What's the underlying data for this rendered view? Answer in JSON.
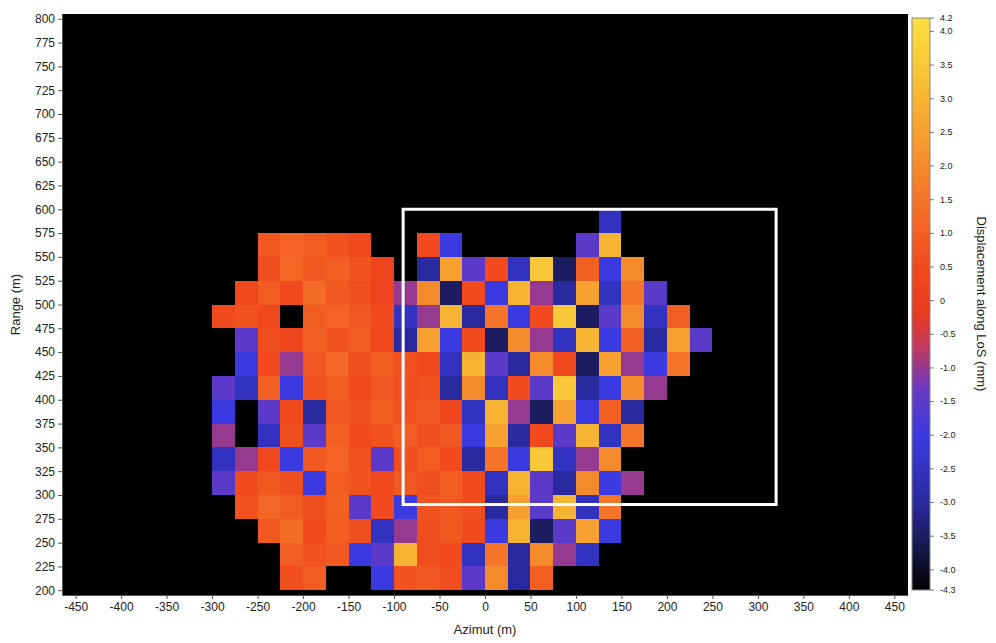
{
  "chart_data": {
    "type": "heatmap",
    "x_label": "Azimut (m)",
    "y_label": "Range (m)",
    "xlim": [
      -465,
      465
    ],
    "ylim": [
      195,
      805
    ],
    "xticks": [
      -450,
      -400,
      -350,
      -300,
      -250,
      -200,
      -150,
      -100,
      -50,
      0,
      50,
      100,
      150,
      200,
      250,
      300,
      350,
      400,
      450
    ],
    "yticks": [
      200,
      225,
      250,
      275,
      300,
      325,
      350,
      375,
      400,
      425,
      450,
      475,
      500,
      525,
      550,
      575,
      600,
      625,
      650,
      675,
      700,
      725,
      750,
      775,
      800
    ],
    "x": [
      -287.5,
      -262.5,
      -237.5,
      -212.5,
      -187.5,
      -162.5,
      -137.5,
      -112.5,
      -87.5,
      -62.5,
      -37.5,
      -12.5,
      12.5,
      37.5,
      62.5,
      87.5,
      112.5,
      137.5,
      162.5,
      187.5,
      212.5,
      237.5,
      262.5,
      287.5,
      312.5
    ],
    "y": [
      212.5,
      237.5,
      262.5,
      287.5,
      312.5,
      337.5,
      362.5,
      387.5,
      412.5,
      437.5,
      462.5,
      487.5,
      512.5,
      537.5,
      562.5,
      587.5
    ],
    "values": [
      [
        null,
        null,
        null,
        0.6,
        0.9,
        null,
        null,
        -2.0,
        0.7,
        0.8,
        0.6,
        -1.5,
        2.0,
        -3.0,
        1.0,
        null,
        null,
        null,
        null,
        null,
        null,
        null,
        null,
        null,
        null
      ],
      [
        null,
        null,
        null,
        1.0,
        0.7,
        0.8,
        -2.0,
        -1.5,
        3.0,
        0.6,
        0.5,
        -2.5,
        1.5,
        -3.0,
        2.0,
        -1.0,
        -2.5,
        null,
        null,
        null,
        null,
        null,
        null,
        null,
        null
      ],
      [
        null,
        null,
        0.8,
        1.3,
        0.5,
        0.9,
        0.6,
        -2.5,
        -1.0,
        0.6,
        0.8,
        0.5,
        -2.0,
        3.0,
        -3.5,
        -1.5,
        2.5,
        -2.0,
        null,
        null,
        null,
        null,
        null,
        null,
        null
      ],
      [
        null,
        0.7,
        1.2,
        0.9,
        0.6,
        1.0,
        -1.5,
        0.5,
        -2.0,
        0.7,
        0.8,
        0.6,
        -3.0,
        2.5,
        -1.5,
        3.0,
        -2.5,
        1.5,
        null,
        null,
        null,
        null,
        null,
        null,
        null
      ],
      [
        -1.5,
        0.5,
        0.8,
        0.6,
        -2.0,
        0.9,
        0.7,
        0.4,
        0.8,
        0.6,
        0.9,
        0.5,
        -2.5,
        3.0,
        -1.5,
        -3.0,
        2.0,
        -2.0,
        -1.0,
        null,
        null,
        null,
        null,
        null,
        null
      ],
      [
        -2.5,
        -1.0,
        0.4,
        -2.0,
        0.8,
        1.1,
        0.7,
        -1.5,
        0.6,
        0.9,
        0.5,
        -3.0,
        1.5,
        -2.0,
        3.5,
        -2.5,
        -1.0,
        2.0,
        null,
        null,
        null,
        null,
        null,
        null,
        null
      ],
      [
        -1.0,
        null,
        -2.5,
        0.6,
        -1.5,
        1.0,
        0.5,
        0.7,
        0.9,
        0.6,
        0.8,
        -2.0,
        2.5,
        -3.0,
        0.5,
        -1.5,
        3.0,
        -2.5,
        1.5,
        null,
        null,
        null,
        null,
        null,
        null
      ],
      [
        -2.0,
        null,
        -1.5,
        0.5,
        -3.0,
        0.8,
        0.6,
        0.9,
        0.7,
        0.8,
        0.3,
        -2.5,
        3.0,
        -1.0,
        -3.5,
        2.5,
        -2.0,
        1.0,
        -3.0,
        null,
        null,
        null,
        null,
        null,
        null
      ],
      [
        -1.5,
        -2.5,
        1.0,
        -2.0,
        0.7,
        0.9,
        0.5,
        0.8,
        0.6,
        0.7,
        -3.0,
        2.0,
        -2.5,
        0.5,
        -1.5,
        3.5,
        -3.0,
        -2.0,
        2.0,
        -1.0,
        null,
        null,
        null,
        null,
        null
      ],
      [
        null,
        -2.0,
        0.5,
        -1.0,
        0.8,
        1.2,
        0.6,
        0.9,
        0.7,
        0.4,
        -2.5,
        3.0,
        -1.5,
        -3.0,
        2.0,
        0.5,
        -3.5,
        2.5,
        -1.0,
        -2.0,
        1.5,
        null,
        null,
        null,
        null
      ],
      [
        null,
        -1.5,
        0.6,
        0.3,
        1.0,
        0.7,
        0.9,
        0.4,
        -3.0,
        2.5,
        -2.0,
        0.5,
        -3.5,
        2.0,
        -1.0,
        -2.5,
        3.0,
        -2.0,
        1.0,
        -3.0,
        2.5,
        -1.5,
        null,
        null,
        null
      ],
      [
        0.5,
        0.7,
        0.4,
        null,
        0.9,
        1.1,
        0.8,
        0.5,
        -2.5,
        -1.0,
        3.0,
        -3.0,
        1.5,
        -2.0,
        0.5,
        3.5,
        -3.5,
        -1.5,
        2.0,
        -2.5,
        1.0,
        null,
        null,
        null,
        null
      ],
      [
        null,
        0.4,
        0.9,
        0.5,
        1.3,
        0.8,
        0.6,
        0.2,
        -1.0,
        2.0,
        -3.5,
        0.5,
        -2.0,
        3.0,
        -1.0,
        -3.0,
        2.5,
        -2.5,
        1.5,
        -1.5,
        null,
        null,
        null,
        null,
        null
      ],
      [
        null,
        null,
        0.6,
        1.2,
        0.8,
        1.0,
        0.7,
        0.3,
        null,
        -3.0,
        2.5,
        -1.5,
        0.5,
        -2.5,
        3.5,
        -3.5,
        1.0,
        -2.0,
        2.0,
        null,
        null,
        null,
        null,
        null,
        null
      ],
      [
        null,
        null,
        0.8,
        1.1,
        0.9,
        0.7,
        0.4,
        null,
        null,
        0.5,
        -2.0,
        null,
        null,
        null,
        null,
        null,
        -1.5,
        3.0,
        null,
        null,
        null,
        null,
        null,
        null,
        null
      ],
      [
        null,
        null,
        null,
        null,
        null,
        null,
        null,
        null,
        null,
        null,
        null,
        null,
        null,
        null,
        null,
        null,
        null,
        -2.5,
        null,
        null,
        null,
        null,
        null,
        null,
        null
      ]
    ],
    "colorbar_label": "Displacement along LoS (mm)",
    "colorbar_range": [
      -4.3,
      4.2
    ],
    "colorbar_ticks": [
      4.2,
      {
        "value": 4,
        "label": "4.0"
      },
      3.5,
      {
        "value": 3,
        "label": "3.0"
      },
      2.5,
      {
        "value": 2,
        "label": "2.0"
      },
      1.5,
      {
        "value": 1,
        "label": "1.0"
      },
      0.5,
      0,
      -0.5,
      {
        "value": -1,
        "label": "-1.0"
      },
      -1.5,
      {
        "value": -2,
        "label": "-2.0"
      },
      -2.5,
      {
        "value": -3,
        "label": "-3.0"
      },
      -3.5,
      {
        "value": -4,
        "label": "-4.0"
      },
      -4.3
    ],
    "highlight_box": {
      "x": [
        -90,
        320
      ],
      "y": [
        290,
        600
      ]
    }
  }
}
